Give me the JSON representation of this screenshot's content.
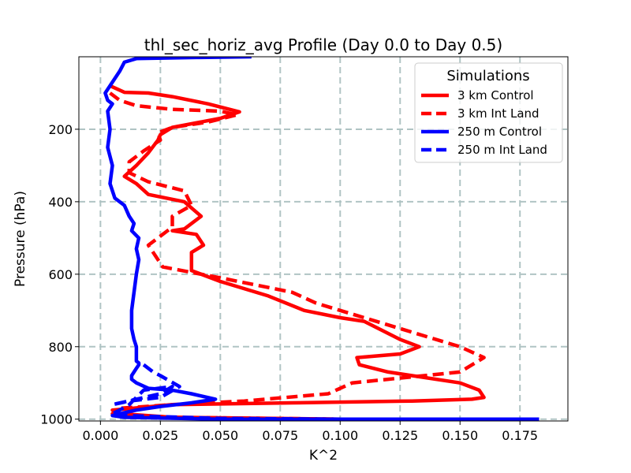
{
  "chart_data": {
    "type": "line",
    "title": "thl_sec_horiz_avg Profile (Day 0.0 to Day 0.5)",
    "xlabel": "K^2",
    "ylabel": "Pressure (hPa)",
    "xlim": [
      -0.009,
      0.195
    ],
    "ylim": [
      1005,
      0
    ],
    "y_inverted": true,
    "x_ticks": [
      0.0,
      0.025,
      0.05,
      0.075,
      0.1,
      0.125,
      0.15,
      0.175
    ],
    "x_tick_labels": [
      "0.000",
      "0.025",
      "0.050",
      "0.075",
      "0.100",
      "0.125",
      "0.150",
      "0.175"
    ],
    "y_ticks": [
      200,
      400,
      600,
      800,
      1000
    ],
    "y_tick_labels": [
      "200",
      "400",
      "600",
      "800",
      "1000"
    ],
    "grid": true,
    "legend": {
      "title": "Simulations",
      "placement": "top-right"
    },
    "series": [
      {
        "name": "3 km Control",
        "color": "#ff0000",
        "dash": "solid",
        "x": [
          0.004,
          0.01,
          0.02,
          0.03,
          0.045,
          0.058,
          0.05,
          0.03,
          0.025,
          0.024,
          0.02,
          0.015,
          0.01,
          0.015,
          0.02,
          0.035,
          0.042,
          0.035,
          0.03,
          0.04,
          0.043,
          0.038,
          0.038,
          0.05,
          0.07,
          0.085,
          0.1,
          0.11,
          0.125,
          0.133,
          0.125,
          0.107,
          0.108,
          0.12,
          0.15,
          0.158,
          0.16,
          0.155,
          0.13,
          0.08,
          0.03,
          0.005,
          0.008,
          0.03,
          0.1,
          0.155,
          0.18
        ],
        "y": [
          80,
          98,
          100,
          110,
          130,
          152,
          170,
          195,
          215,
          230,
          265,
          300,
          330,
          350,
          380,
          400,
          440,
          475,
          480,
          490,
          520,
          540,
          590,
          620,
          660,
          700,
          720,
          730,
          780,
          800,
          820,
          830,
          850,
          870,
          900,
          920,
          940,
          945,
          950,
          955,
          960,
          975,
          985,
          995,
          1000,
          1000,
          1000
        ]
      },
      {
        "name": "3 km Int Land",
        "color": "#ff0000",
        "dash": "dashed",
        "x": [
          0.004,
          0.008,
          0.015,
          0.03,
          0.05,
          0.057,
          0.045,
          0.03,
          0.024,
          0.025,
          0.018,
          0.012,
          0.012,
          0.02,
          0.035,
          0.038,
          0.03,
          0.03,
          0.02,
          0.026,
          0.05,
          0.08,
          0.09,
          0.1,
          0.12,
          0.135,
          0.15,
          0.16,
          0.15,
          0.12,
          0.105,
          0.095,
          0.06,
          0.03,
          0.008,
          0.005,
          0.03,
          0.1,
          0.155,
          0.17
        ],
        "y": [
          100,
          120,
          135,
          145,
          150,
          160,
          180,
          195,
          210,
          230,
          260,
          290,
          320,
          345,
          370,
          410,
          440,
          470,
          520,
          580,
          610,
          650,
          680,
          700,
          740,
          770,
          800,
          830,
          870,
          890,
          900,
          930,
          950,
          960,
          970,
          985,
          995,
          1000,
          1000,
          1000
        ]
      },
      {
        "name": "250 m Control",
        "color": "#0000ff",
        "dash": "solid",
        "x": [
          0.063,
          0.04,
          0.015,
          0.01,
          0.008,
          0.005,
          0.002,
          0.003,
          0.005,
          0.003,
          0.004,
          0.003,
          0.005,
          0.004,
          0.006,
          0.008,
          0.01,
          0.012,
          0.014,
          0.013,
          0.016,
          0.015,
          0.016,
          0.015,
          0.014,
          0.013,
          0.013,
          0.014,
          0.015,
          0.015,
          0.015,
          0.016,
          0.016,
          0.015,
          0.014,
          0.013,
          0.013,
          0.015,
          0.02,
          0.03,
          0.038,
          0.048,
          0.038,
          0.025,
          0.015,
          0.008,
          0.005,
          0.01,
          0.05,
          0.12,
          0.18
        ],
        "y": [
          0,
          2,
          5,
          15,
          40,
          70,
          100,
          120,
          130,
          150,
          200,
          250,
          300,
          350,
          390,
          400,
          410,
          440,
          460,
          480,
          500,
          530,
          560,
          600,
          650,
          700,
          750,
          780,
          800,
          820,
          840,
          845,
          850,
          860,
          870,
          880,
          890,
          900,
          915,
          920,
          930,
          945,
          955,
          965,
          975,
          985,
          990,
          995,
          1000,
          1000,
          1000
        ]
      },
      {
        "name": "250 m Int Land",
        "color": "#0000ff",
        "dash": "dashed",
        "x": [
          0.018,
          0.022,
          0.025,
          0.033,
          0.025,
          0.012,
          0.005,
          0.025,
          0.03,
          0.018,
          0.012,
          0.008,
          0.005,
          0.01,
          0.05,
          0.1,
          0.16,
          0.183
        ],
        "y": [
          850,
          870,
          880,
          910,
          940,
          950,
          960,
          930,
          910,
          920,
          960,
          975,
          985,
          990,
          998,
          1000,
          1000,
          1000
        ]
      }
    ]
  }
}
